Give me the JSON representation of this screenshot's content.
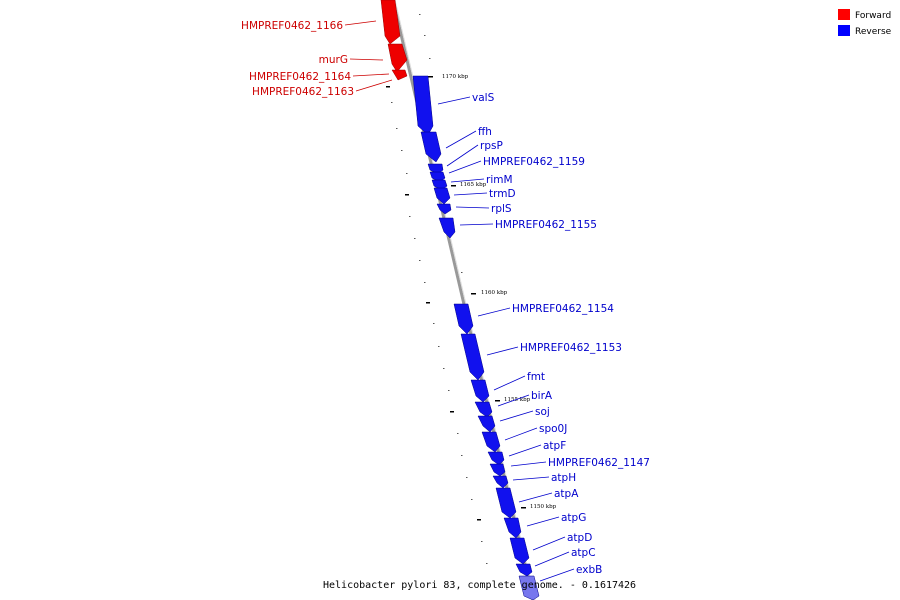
{
  "legend": [
    {
      "label": "Forward",
      "color": "#ff0000"
    },
    {
      "label": "Reverse",
      "color": "#0000ff"
    }
  ],
  "caption": "Helicobacter pylori 83, complete genome. - 0.1617426",
  "scale_labels": [
    "1170 kbp",
    "1165 kbp",
    "1160 kbp",
    "1155 kbp",
    "1150 kbp"
  ],
  "forward_genes": [
    "HMPREF0462_1166",
    "murG",
    "HMPREF0462_1164",
    "HMPREF0462_1163"
  ],
  "reverse_genes": [
    "valS",
    "ffh",
    "rpsP",
    "HMPREF0462_1159",
    "rimM",
    "trmD",
    "rplS",
    "HMPREF0462_1155",
    "HMPREF0462_1154",
    "HMPREF0462_1153",
    "fmt",
    "birA",
    "soj",
    "spo0J",
    "atpF",
    "HMPREF0462_1147",
    "atpH",
    "atpA",
    "atpG",
    "atpD",
    "atpC",
    "exbB"
  ],
  "colors": {
    "forward": "#ff0000",
    "reverse": "#0000ff",
    "backbone": "#888888"
  }
}
